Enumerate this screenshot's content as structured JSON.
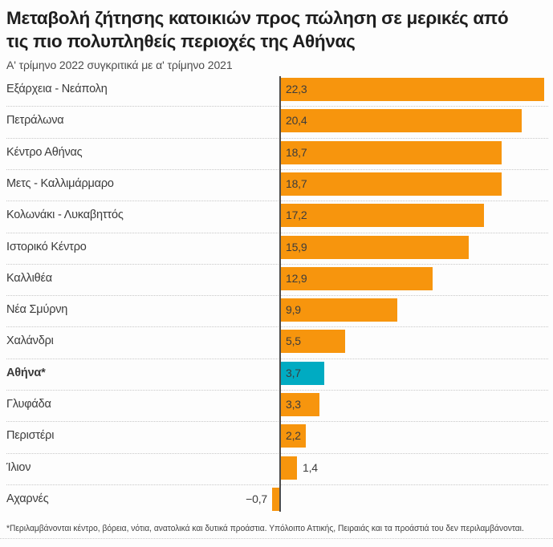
{
  "header": {
    "title_line1": "Μεταβολή ζήτησης κατοικιών προς πώληση σε μερικές από",
    "title_line2": "τις πιο πολυπληθείς περιοχές της Αθήνας",
    "subtitle": "Α' τρίμηνο 2022 συγκριτικά με α' τρίμηνο 2021"
  },
  "footer": {
    "note": "*Περιλαμβάνονται κέντρο, βόρεια, νότια, ανατολικά και δυτικά προάστια. Υπόλοιπο Αττικής, Πειραιάς και τα προάστιά του δεν περιλαμβάνονται."
  },
  "chart_data": {
    "type": "bar",
    "orientation": "horizontal",
    "title": "Μεταβολή ζήτησης κατοικιών προς πώληση σε μερικές από τις πιο πολυπληθείς περιοχές της Αθήνας",
    "subtitle": "Α' τρίμηνο 2022 συγκριτικά με α' τρίμηνο 2021",
    "footnote": "*Περιλαμβάνονται κέντρο, βόρεια, νότια, ανατολικά και δυτικά προάστια. Υπόλοιπο Αττικής, Πειραιάς και τα προάστιά του δεν περιλαμβάνονται.",
    "xlabel": "",
    "ylabel": "",
    "xlim": [
      -0.7,
      22.3
    ],
    "grid": "dotted horizontal row separators, dark vertical zero-axis",
    "legend": "none",
    "value_label_format": "comma decimal",
    "bar_color": "#F7950D",
    "highlight_color": "#00ABC2",
    "axis_color": "#4c4c4c",
    "highlight_category": "Αθήνα*",
    "categories": [
      "Εξάρχεια - Νεάπολη",
      "Πετράλωνα",
      "Κέντρο Αθήνας",
      "Μετς - Καλλιμάρμαρο",
      "Κολωνάκι - Λυκαβηττός",
      "Ιστορικό Κέντρο",
      "Καλλιθέα",
      "Νέα Σμύρνη",
      "Χαλάνδρι",
      "Αθήνα*",
      "Γλυφάδα",
      "Περιστέρι",
      "Ίλιον",
      "Αχαρνές"
    ],
    "values": [
      22.3,
      20.4,
      18.7,
      18.7,
      17.2,
      15.9,
      12.9,
      9.9,
      5.5,
      3.7,
      3.3,
      2.2,
      1.4,
      -0.7
    ],
    "rows": [
      {
        "label": "Εξάρχεια - Νεάπολη",
        "value": 22.3,
        "display": "22,3",
        "highlight": false,
        "bold": false,
        "label_pos": "inside"
      },
      {
        "label": "Πετράλωνα",
        "value": 20.4,
        "display": "20,4",
        "highlight": false,
        "bold": false,
        "label_pos": "inside"
      },
      {
        "label": "Κέντρο Αθήνας",
        "value": 18.7,
        "display": "18,7",
        "highlight": false,
        "bold": false,
        "label_pos": "inside"
      },
      {
        "label": "Μετς - Καλλιμάρμαρο",
        "value": 18.7,
        "display": "18,7",
        "highlight": false,
        "bold": false,
        "label_pos": "inside"
      },
      {
        "label": "Κολωνάκι - Λυκαβηττός",
        "value": 17.2,
        "display": "17,2",
        "highlight": false,
        "bold": false,
        "label_pos": "inside"
      },
      {
        "label": "Ιστορικό Κέντρο",
        "value": 15.9,
        "display": "15,9",
        "highlight": false,
        "bold": false,
        "label_pos": "inside"
      },
      {
        "label": "Καλλιθέα",
        "value": 12.9,
        "display": "12,9",
        "highlight": false,
        "bold": false,
        "label_pos": "inside"
      },
      {
        "label": "Νέα Σμύρνη",
        "value": 9.9,
        "display": "9,9",
        "highlight": false,
        "bold": false,
        "label_pos": "inside"
      },
      {
        "label": "Χαλάνδρι",
        "value": 5.5,
        "display": "5,5",
        "highlight": false,
        "bold": false,
        "label_pos": "inside"
      },
      {
        "label": "Αθήνα*",
        "value": 3.7,
        "display": "3,7",
        "highlight": true,
        "bold": true,
        "label_pos": "inside"
      },
      {
        "label": "Γλυφάδα",
        "value": 3.3,
        "display": "3,3",
        "highlight": false,
        "bold": false,
        "label_pos": "inside"
      },
      {
        "label": "Περιστέρι",
        "value": 2.2,
        "display": "2,2",
        "highlight": false,
        "bold": false,
        "label_pos": "inside"
      },
      {
        "label": "Ίλιον",
        "value": 1.4,
        "display": "1,4",
        "highlight": false,
        "bold": false,
        "label_pos": "right"
      },
      {
        "label": "Αχαρνές",
        "value": -0.7,
        "display": "−0,7",
        "highlight": false,
        "bold": false,
        "label_pos": "left"
      }
    ]
  }
}
